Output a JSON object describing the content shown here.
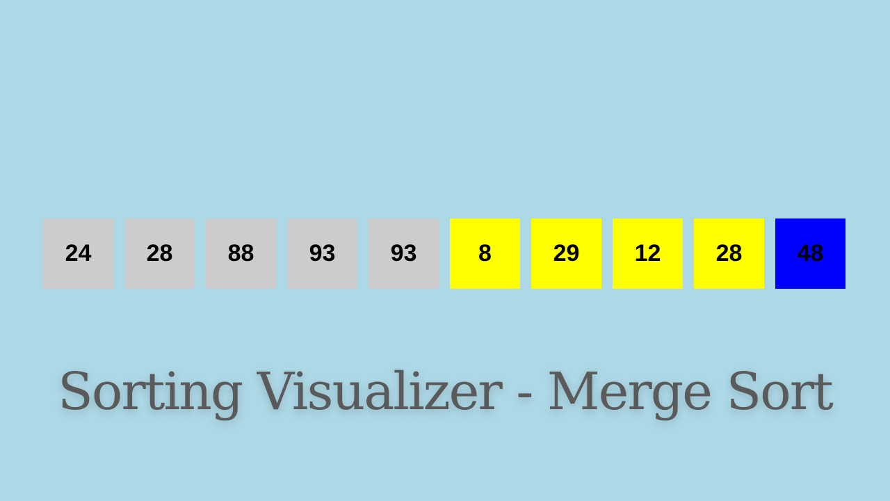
{
  "colors": {
    "background": "#add8e6",
    "sorted": "#cccccc",
    "comparing": "#ffff00",
    "current": "#0000ff",
    "text": "#000000",
    "title": "#5a5a5a"
  },
  "array": [
    {
      "value": "24",
      "state": "sorted"
    },
    {
      "value": "28",
      "state": "sorted"
    },
    {
      "value": "88",
      "state": "sorted"
    },
    {
      "value": "93",
      "state": "sorted"
    },
    {
      "value": "93",
      "state": "sorted"
    },
    {
      "value": "8",
      "state": "comparing"
    },
    {
      "value": "29",
      "state": "comparing"
    },
    {
      "value": "12",
      "state": "comparing"
    },
    {
      "value": "28",
      "state": "comparing"
    },
    {
      "value": "48",
      "state": "current"
    }
  ],
  "title": "Sorting Visualizer - Merge Sort"
}
